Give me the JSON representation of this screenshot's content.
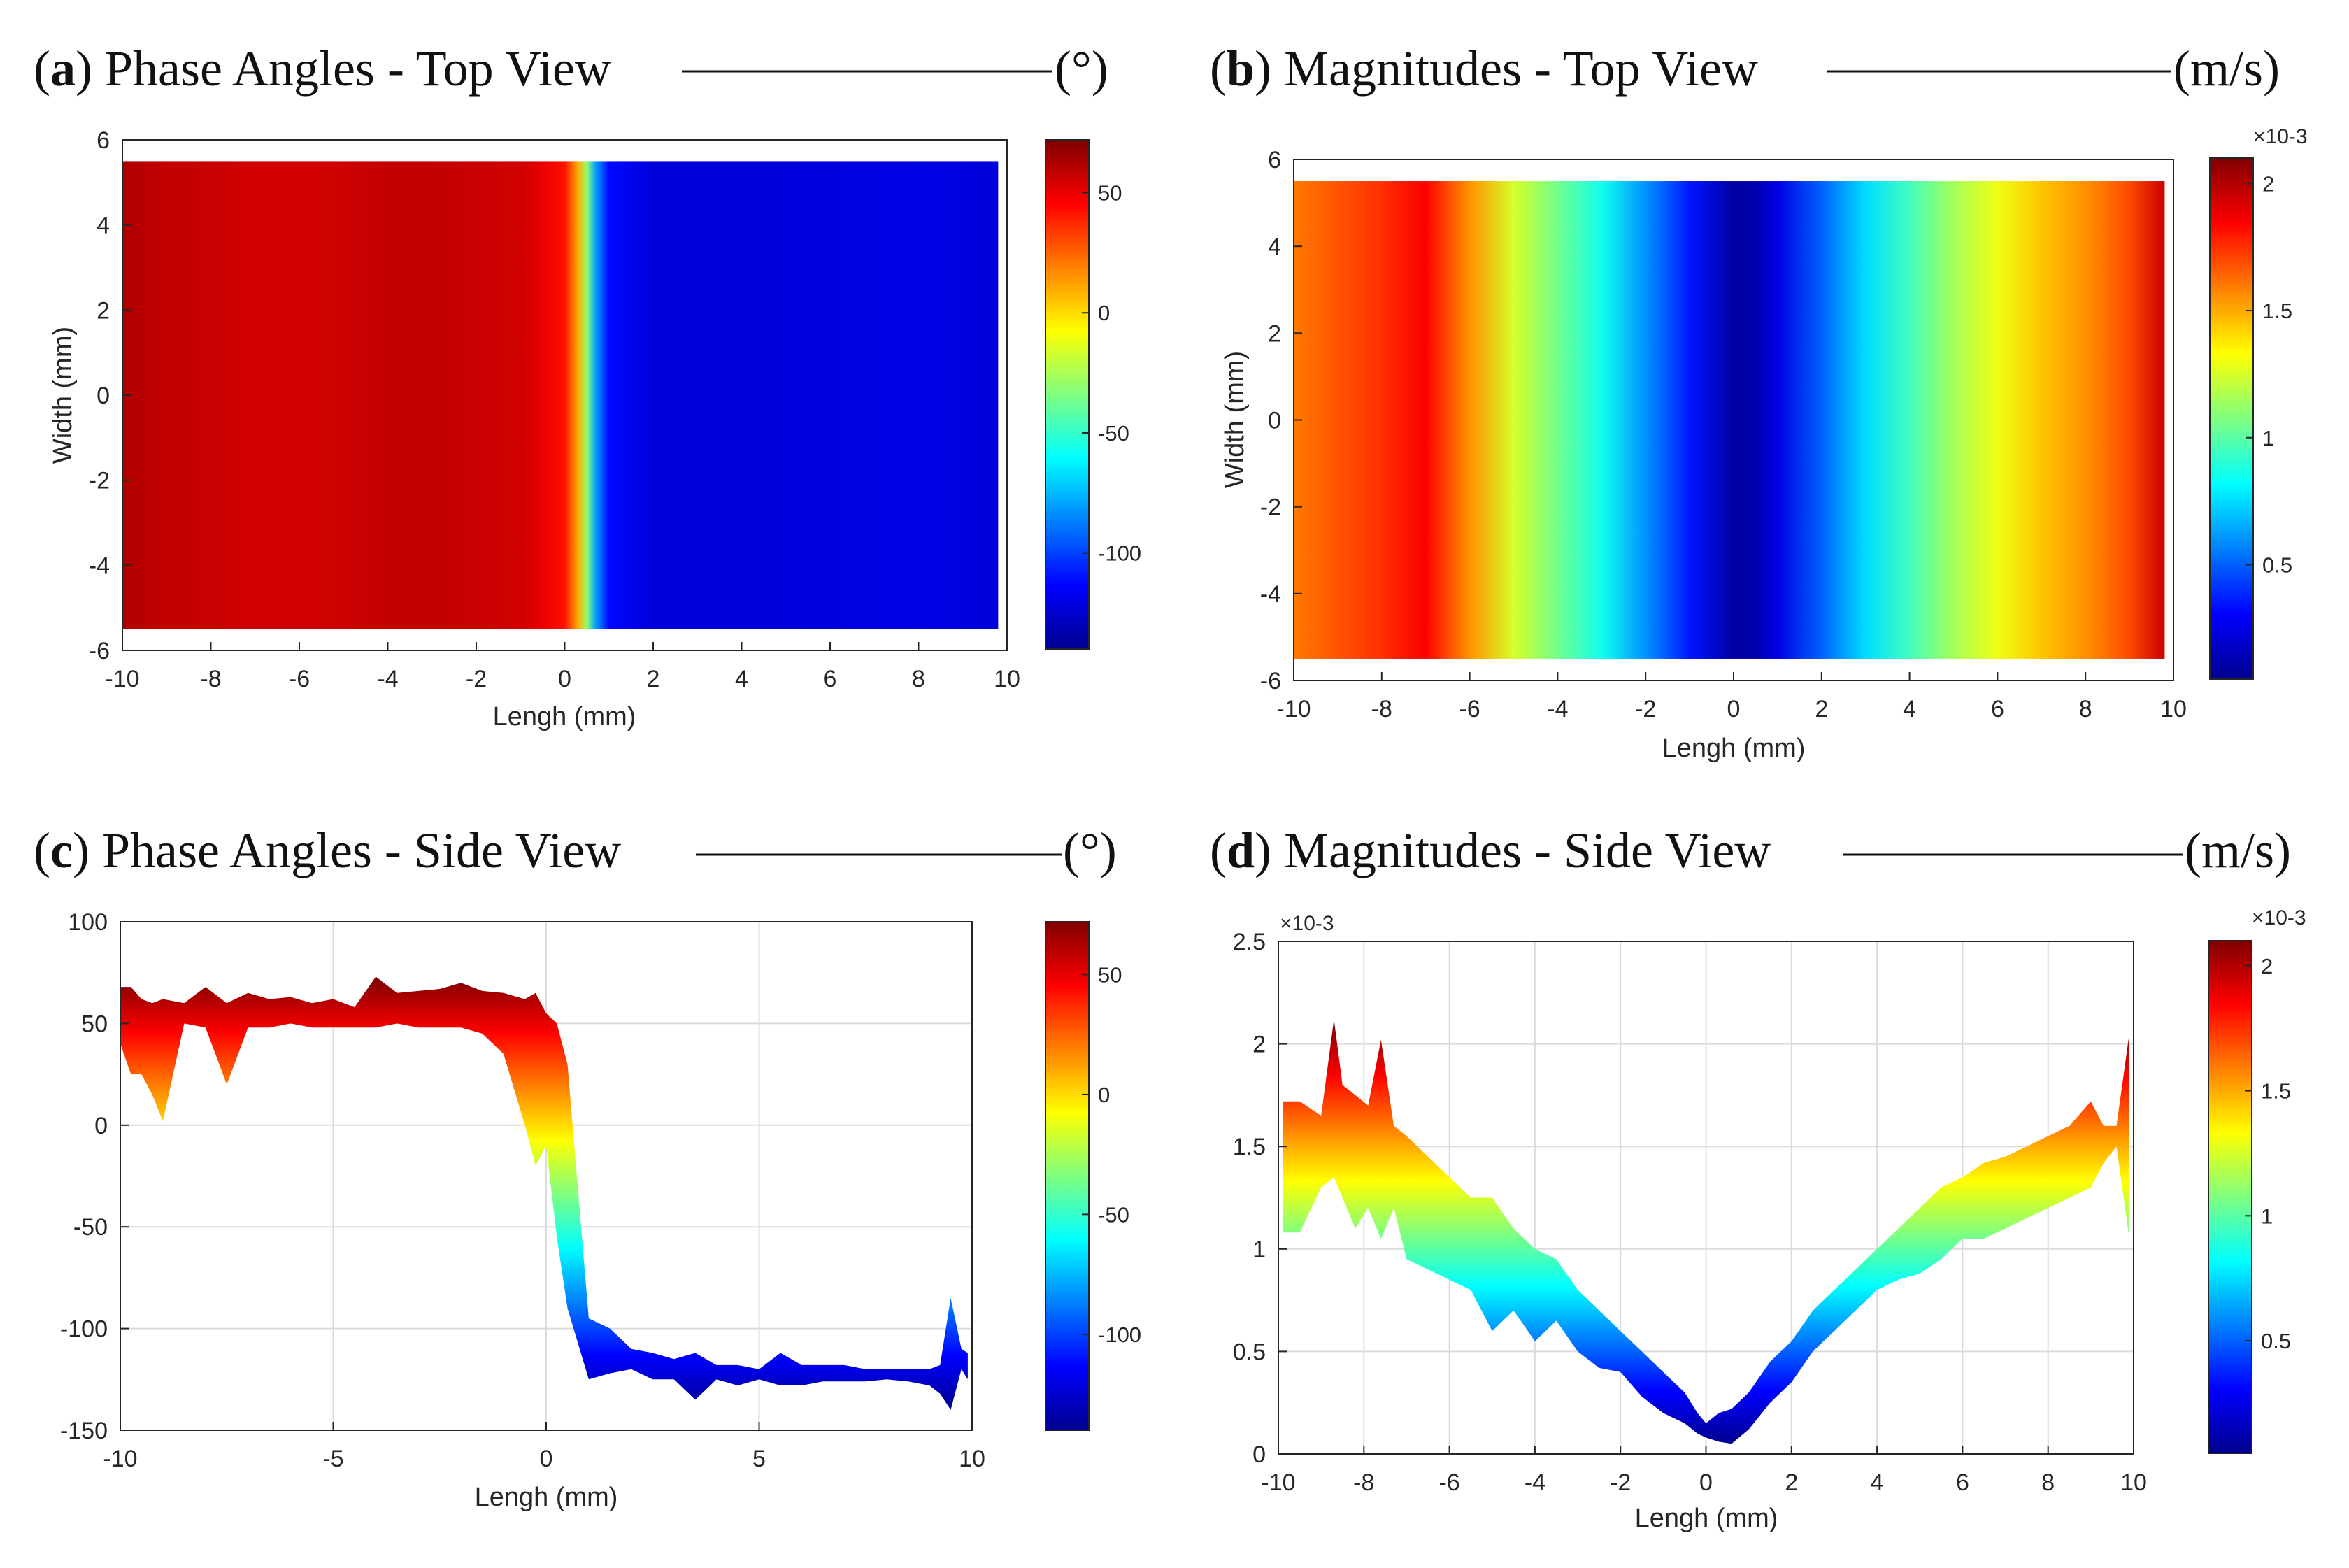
{
  "chart_data": [
    {
      "id": "a",
      "type": "heatmap",
      "panel_letter": "a",
      "title": "Phase Angles - Top View",
      "unit": "(°)",
      "xlabel": "Lengh (mm)",
      "ylabel": "Width (mm)",
      "xlim": [
        -10,
        10
      ],
      "ylim": [
        -6,
        6
      ],
      "xticks": [
        "-10",
        "-8",
        "-6",
        "-4",
        "-2",
        "0",
        "2",
        "4",
        "6",
        "8",
        "10"
      ],
      "yticks": [
        "6",
        "4",
        "2",
        "0",
        "-2",
        "-4",
        "-6"
      ],
      "colormap": "jet",
      "clim": [
        -140,
        72
      ],
      "colorbar_ticks": [
        "50",
        "0",
        "-50",
        "-100"
      ],
      "colorbar_values": [
        50,
        0,
        -50,
        -100
      ],
      "surface_x_extent": [
        -10,
        9.8
      ],
      "surface_y_extent": [
        -5.5,
        5.5
      ],
      "x_profile": {
        "x": [
          -10,
          -9,
          -8,
          -7,
          -6,
          -5,
          -4,
          -3,
          -2,
          -1,
          -0.5,
          0,
          0.3,
          0.5,
          0.7,
          1,
          2,
          4,
          6,
          8,
          9.8
        ],
        "values": [
          62,
          58,
          57,
          55,
          55,
          56,
          58,
          58,
          57,
          55,
          50,
          42,
          10,
          -30,
          -80,
          -112,
          -122,
          -122,
          -121,
          -120,
          -122
        ]
      }
    },
    {
      "id": "b",
      "type": "heatmap",
      "panel_letter": "b",
      "title": "Magnitudes - Top View",
      "unit": "(m/s)",
      "xlabel": "Lengh (mm)",
      "ylabel": "Width (mm)",
      "xlim": [
        -10,
        10
      ],
      "ylim": [
        -6,
        6
      ],
      "xticks": [
        "-10",
        "-8",
        "-6",
        "-4",
        "-2",
        "0",
        "2",
        "4",
        "6",
        "8",
        "10"
      ],
      "yticks": [
        "6",
        "4",
        "2",
        "0",
        "-2",
        "-4",
        "-6"
      ],
      "colormap": "jet",
      "clim": [
        0.05,
        2.1
      ],
      "colorbar_exponent": "×10-3",
      "colorbar_ticks": [
        "2",
        "1.5",
        "1",
        "0.5"
      ],
      "colorbar_values": [
        2,
        1.5,
        1,
        0.5
      ],
      "surface_x_extent": [
        -10,
        9.8
      ],
      "surface_y_extent": [
        -5.5,
        5.5
      ],
      "x_profile": {
        "x": [
          -10,
          -8,
          -7,
          -6,
          -5,
          -4,
          -3,
          -2,
          -1,
          0,
          0.5,
          1,
          2,
          3,
          4,
          5,
          6,
          7,
          8,
          9,
          9.8
        ],
        "values": [
          1.6,
          1.75,
          1.85,
          1.55,
          1.25,
          1.05,
          0.85,
          0.6,
          0.35,
          0.1,
          0.12,
          0.25,
          0.5,
          0.75,
          0.95,
          1.15,
          1.3,
          1.45,
          1.55,
          1.7,
          1.95
        ]
      }
    },
    {
      "id": "c",
      "type": "area",
      "panel_letter": "c",
      "title": "Phase Angles - Side View",
      "unit": "(°)",
      "xlabel": "Lengh (mm)",
      "ylabel": "",
      "xlim": [
        -10,
        10
      ],
      "ylim": [
        -150,
        100
      ],
      "xticks": [
        "-10",
        "-5",
        "0",
        "5",
        "10"
      ],
      "yticks": [
        "100",
        "50",
        "0",
        "-50",
        "-100",
        "-150"
      ],
      "grid": true,
      "colormap": "jet",
      "clim": [
        -140,
        72
      ],
      "colorbar_ticks": [
        "50",
        "0",
        "-50",
        "-100"
      ],
      "colorbar_values": [
        50,
        0,
        -50,
        -100
      ],
      "x": [
        -10,
        -9.75,
        -9.5,
        -9.25,
        -9,
        -8.5,
        -8,
        -7.5,
        -7,
        -6.5,
        -6,
        -5.5,
        -5,
        -4.5,
        -4,
        -3.5,
        -3,
        -2.5,
        -2,
        -1.5,
        -1,
        -0.5,
        -0.25,
        0,
        0.25,
        0.5,
        1,
        1.5,
        2,
        2.5,
        3,
        3.5,
        4,
        4.5,
        5,
        5.5,
        6,
        6.5,
        7,
        7.5,
        8,
        8.5,
        9,
        9.25,
        9.5,
        9.75,
        9.9
      ],
      "upper": [
        68,
        68,
        62,
        60,
        62,
        60,
        68,
        60,
        65,
        62,
        63,
        60,
        62,
        58,
        73,
        65,
        66,
        67,
        70,
        66,
        65,
        62,
        65,
        55,
        50,
        30,
        -95,
        -100,
        -110,
        -112,
        -115,
        -112,
        -118,
        -118,
        -120,
        -112,
        -118,
        -118,
        -118,
        -120,
        -120,
        -120,
        -120,
        -118,
        -85,
        -110,
        -112
      ],
      "lower": [
        40,
        25,
        25,
        15,
        2,
        50,
        48,
        20,
        48,
        48,
        50,
        48,
        48,
        48,
        48,
        50,
        48,
        48,
        48,
        45,
        35,
        0,
        -20,
        -10,
        -55,
        -90,
        -125,
        -122,
        -120,
        -125,
        -125,
        -135,
        -125,
        -128,
        -125,
        -128,
        -128,
        -126,
        -126,
        -126,
        -125,
        -126,
        -128,
        -132,
        -140,
        -120,
        -125
      ]
    },
    {
      "id": "d",
      "type": "area",
      "panel_letter": "d",
      "title": "Magnitudes - Side View",
      "unit": "(m/s)",
      "xlabel": "Lengh (mm)",
      "ylabel": "",
      "xlim": [
        -10,
        10
      ],
      "ylim": [
        0,
        2.5
      ],
      "y_exponent": "×10-3",
      "xticks": [
        "-10",
        "-8",
        "-6",
        "-4",
        "-2",
        "0",
        "2",
        "4",
        "6",
        "8",
        "10"
      ],
      "yticks": [
        "2.5",
        "2",
        "1.5",
        "1",
        "0.5",
        "0"
      ],
      "grid": true,
      "colormap": "jet",
      "clim": [
        0.05,
        2.1
      ],
      "colorbar_exponent": "×10-3",
      "colorbar_ticks": [
        "2",
        "1.5",
        "1",
        "0.5"
      ],
      "colorbar_values": [
        2,
        1.5,
        1,
        0.5
      ],
      "x": [
        -9.9,
        -9.5,
        -9,
        -8.7,
        -8.5,
        -8.2,
        -7.9,
        -7.6,
        -7.3,
        -7,
        -6.5,
        -6,
        -5.5,
        -5,
        -4.5,
        -4,
        -3.5,
        -3,
        -2.5,
        -2,
        -1.5,
        -1,
        -0.5,
        -0.2,
        0,
        0.3,
        0.6,
        1,
        1.5,
        2,
        2.5,
        3,
        3.5,
        4,
        4.5,
        5,
        5.5,
        6,
        6.5,
        7,
        7.5,
        8,
        8.5,
        9,
        9.3,
        9.6,
        9.9
      ],
      "upper": [
        1.72,
        1.72,
        1.65,
        2.12,
        1.8,
        1.75,
        1.7,
        2.02,
        1.6,
        1.55,
        1.45,
        1.35,
        1.25,
        1.25,
        1.1,
        1.0,
        0.95,
        0.8,
        0.7,
        0.6,
        0.5,
        0.4,
        0.3,
        0.2,
        0.15,
        0.2,
        0.22,
        0.3,
        0.45,
        0.55,
        0.7,
        0.8,
        0.9,
        1.0,
        1.1,
        1.2,
        1.3,
        1.35,
        1.42,
        1.45,
        1.5,
        1.55,
        1.6,
        1.72,
        1.6,
        1.6,
        2.05
      ],
      "lower": [
        1.08,
        1.08,
        1.3,
        1.35,
        1.25,
        1.1,
        1.2,
        1.05,
        1.2,
        0.95,
        0.9,
        0.85,
        0.8,
        0.6,
        0.7,
        0.55,
        0.65,
        0.5,
        0.42,
        0.4,
        0.28,
        0.2,
        0.15,
        0.1,
        0.08,
        0.06,
        0.05,
        0.12,
        0.25,
        0.35,
        0.5,
        0.6,
        0.7,
        0.8,
        0.85,
        0.88,
        0.95,
        1.05,
        1.05,
        1.1,
        1.15,
        1.2,
        1.25,
        1.3,
        1.42,
        1.5,
        1.05
      ]
    }
  ]
}
